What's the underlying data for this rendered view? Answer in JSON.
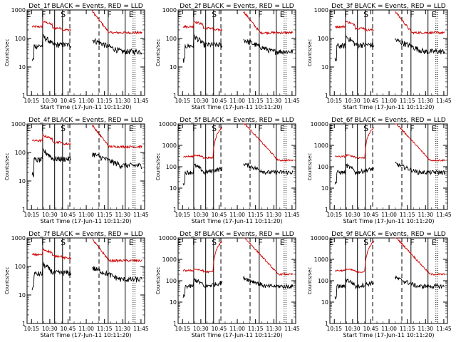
{
  "chart_data": [
    {
      "type": "line",
      "title": "Det_1f BLACK = Events, RED = LLD",
      "xlabel": "Start Time (17-Jun-11 10:11:20)",
      "ylabel": "Counts/sec",
      "yscale": "log",
      "ylim": [
        1,
        1000
      ],
      "yticks": [
        "1",
        "10",
        "100",
        "1000"
      ],
      "xlim": [
        "10:11:20",
        "11:48:00"
      ],
      "xticks": [
        "10:15",
        "10:30",
        "10:45",
        "11:00",
        "11:15",
        "11:30",
        "11:45"
      ],
      "markers": [
        "E",
        "F",
        "S",
        "F",
        "E"
      ],
      "series": [
        {
          "color": "#000000",
          "values": []
        },
        {
          "color": "#cc0000",
          "values": []
        }
      ]
    },
    {
      "type": "line",
      "title": "Det_2f BLACK = Events, RED = LLD",
      "xlabel": "Start Time (17-Jun-11 10:11:20)",
      "ylabel": "Counts/sec",
      "yscale": "log",
      "ylim": [
        1,
        1000
      ],
      "yticks": [
        "1",
        "10",
        "100",
        "1000"
      ],
      "xlim": [
        "10:11:20",
        "11:48:00"
      ],
      "xticks": [
        "10:15",
        "10:30",
        "10:45",
        "11:00",
        "11:15",
        "11:30",
        "11:45"
      ],
      "markers": [
        "E",
        "F",
        "S",
        "F",
        "E"
      ],
      "series": [
        {
          "color": "#000000",
          "values": []
        },
        {
          "color": "#cc0000",
          "values": []
        }
      ]
    },
    {
      "type": "line",
      "title": "Det_3f BLACK = Events, RED = LLD",
      "xlabel": "Start Time (17-Jun-11 10:11:20)",
      "ylabel": "Counts/sec",
      "yscale": "log",
      "ylim": [
        1,
        1000
      ],
      "yticks": [
        "1",
        "10",
        "100",
        "1000"
      ],
      "xlim": [
        "10:11:20",
        "11:48:00"
      ],
      "xticks": [
        "10:15",
        "10:30",
        "10:45",
        "11:00",
        "11:15",
        "11:30",
        "11:45"
      ],
      "markers": [
        "E",
        "F",
        "S",
        "F",
        "E"
      ],
      "series": [
        {
          "color": "#000000",
          "values": []
        },
        {
          "color": "#cc0000",
          "values": []
        }
      ]
    },
    {
      "type": "line",
      "title": "Det_4f BLACK = Events, RED = LLD",
      "xlabel": "Start Time (17-Jun-11 10:11:20)",
      "ylabel": "Counts/sec",
      "yscale": "log",
      "ylim": [
        1,
        1000
      ],
      "yticks": [
        "1",
        "10",
        "100",
        "1000"
      ],
      "xlim": [
        "10:11:20",
        "11:48:00"
      ],
      "xticks": [
        "10:15",
        "10:30",
        "10:45",
        "11:00",
        "11:15",
        "11:30",
        "11:45"
      ],
      "markers": [
        "E",
        "F",
        "S",
        "F",
        "E"
      ],
      "series": [
        {
          "color": "#000000",
          "values": []
        },
        {
          "color": "#cc0000",
          "values": []
        }
      ]
    },
    {
      "type": "line",
      "title": "Det_5f BLACK = Events, RED = LLD",
      "xlabel": "Start Time (17-Jun-11 10:11:20)",
      "ylabel": "Counts/sec",
      "yscale": "log",
      "ylim": [
        1,
        10000
      ],
      "yticks": [
        "1",
        "10",
        "100",
        "1000",
        "10000"
      ],
      "xlim": [
        "10:11:20",
        "11:48:00"
      ],
      "xticks": [
        "10:15",
        "10:30",
        "10:45",
        "11:00",
        "11:15",
        "11:30",
        "11:45"
      ],
      "markers": [
        "E",
        "F",
        "S",
        "F",
        "E"
      ],
      "series": [
        {
          "color": "#000000",
          "values": []
        },
        {
          "color": "#cc0000",
          "values": []
        }
      ]
    },
    {
      "type": "line",
      "title": "Det_6f BLACK = Events, RED = LLD",
      "xlabel": "Start Time (17-Jun-11 10:11:20)",
      "ylabel": "Counts/sec",
      "yscale": "log",
      "ylim": [
        1,
        10000
      ],
      "yticks": [
        "1",
        "10",
        "100",
        "1000",
        "10000"
      ],
      "xlim": [
        "10:11:20",
        "11:48:00"
      ],
      "xticks": [
        "10:15",
        "10:30",
        "10:45",
        "11:00",
        "11:15",
        "11:30",
        "11:45"
      ],
      "markers": [
        "E",
        "F",
        "S",
        "F",
        "E"
      ],
      "series": [
        {
          "color": "#000000",
          "values": []
        },
        {
          "color": "#cc0000",
          "values": []
        }
      ]
    },
    {
      "type": "line",
      "title": "Det_7f BLACK = Events, RED = LLD",
      "xlabel": "Start Time (17-Jun-11 10:11:20)",
      "ylabel": "Counts/sec",
      "yscale": "log",
      "ylim": [
        1,
        1000
      ],
      "yticks": [
        "1",
        "10",
        "100",
        "1000"
      ],
      "xlim": [
        "10:11:20",
        "11:48:00"
      ],
      "xticks": [
        "10:15",
        "10:30",
        "10:45",
        "11:00",
        "11:15",
        "11:30",
        "11:45"
      ],
      "markers": [
        "E",
        "F",
        "S",
        "F",
        "E"
      ],
      "series": [
        {
          "color": "#000000",
          "values": []
        },
        {
          "color": "#cc0000",
          "values": []
        }
      ]
    },
    {
      "type": "line",
      "title": "Det_8f BLACK = Events, RED = LLD",
      "xlabel": "Start Time (17-Jun-11 10:11:20)",
      "ylabel": "Counts/sec",
      "yscale": "log",
      "ylim": [
        1,
        10000
      ],
      "yticks": [
        "1",
        "10",
        "100",
        "1000",
        "10000"
      ],
      "xlim": [
        "10:11:20",
        "11:48:00"
      ],
      "xticks": [
        "10:15",
        "10:30",
        "10:45",
        "11:00",
        "11:15",
        "11:30",
        "11:45"
      ],
      "markers": [
        "E",
        "F",
        "S",
        "F",
        "E"
      ],
      "series": [
        {
          "color": "#000000",
          "values": []
        },
        {
          "color": "#cc0000",
          "values": []
        }
      ]
    },
    {
      "type": "line",
      "title": "Det_9f BLACK = Events, RED = LLD",
      "xlabel": "Start Time (17-Jun-11 10:11:20)",
      "ylabel": "Counts/sec",
      "yscale": "log",
      "ylim": [
        1,
        10000
      ],
      "yticks": [
        "1",
        "10",
        "100",
        "1000",
        "10000"
      ],
      "xlim": [
        "10:11:20",
        "11:48:00"
      ],
      "xticks": [
        "10:15",
        "10:30",
        "10:45",
        "11:00",
        "11:15",
        "11:30",
        "11:45"
      ],
      "markers": [
        "E",
        "F",
        "S",
        "F",
        "E"
      ],
      "series": [
        {
          "color": "#000000",
          "values": []
        },
        {
          "color": "#cc0000",
          "values": []
        }
      ]
    }
  ]
}
